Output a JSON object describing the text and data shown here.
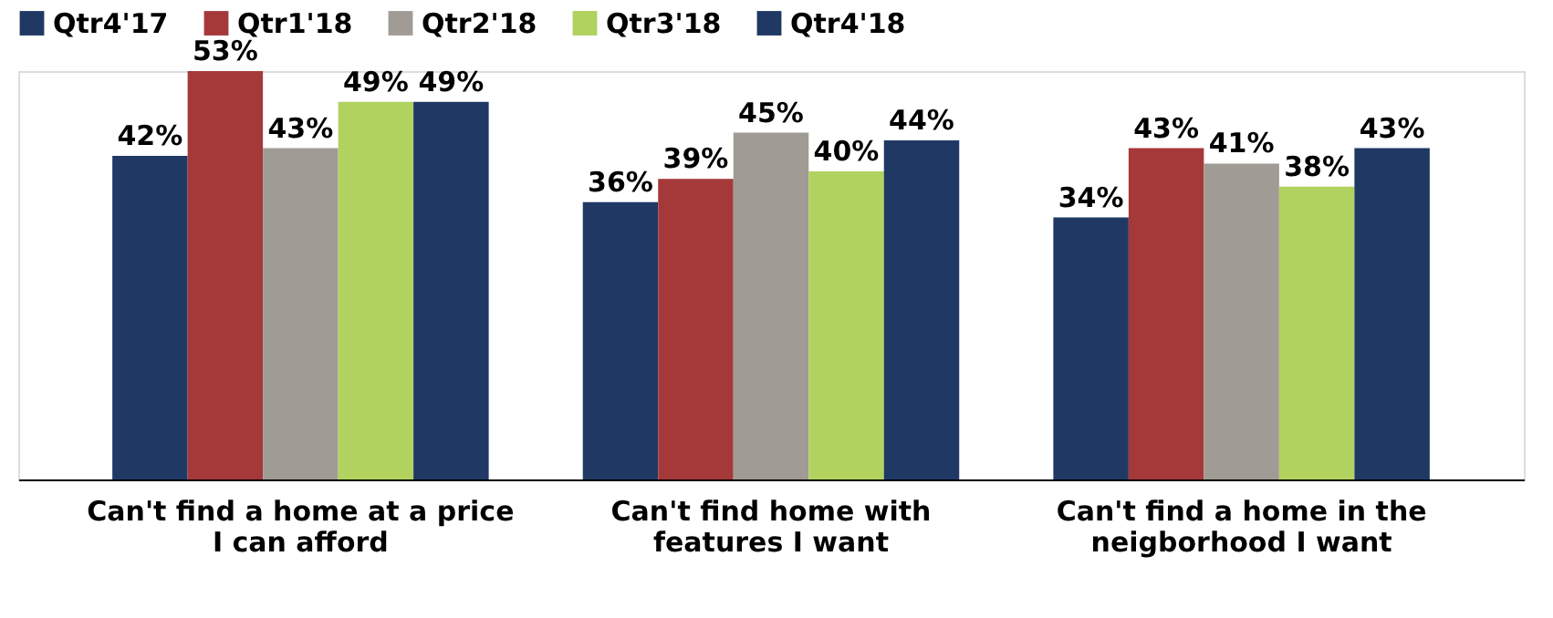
{
  "chart_data": {
    "type": "bar",
    "categories": [
      "Can't find a home at a price\nI can afford",
      "Can't find home with\nfeatures I want",
      "Can't find a home in the\nneigborhood I want"
    ],
    "series": [
      {
        "name": "Qtr4'17",
        "color": "#203864",
        "values": [
          42,
          36,
          34
        ],
        "value_labels": [
          "42%",
          "36%",
          "34%"
        ]
      },
      {
        "name": "Qtr1'18",
        "color": "#a5393a",
        "values": [
          53,
          39,
          43
        ],
        "value_labels": [
          "53%",
          "39%",
          "43%"
        ]
      },
      {
        "name": "Qtr2'18",
        "color": "#a09b94",
        "values": [
          43,
          45,
          41
        ],
        "value_labels": [
          "43%",
          "45%",
          "41%"
        ]
      },
      {
        "name": "Qtr3'18",
        "color": "#b1d25f",
        "values": [
          49,
          40,
          38
        ],
        "value_labels": [
          "49%",
          "40%",
          "38%"
        ]
      },
      {
        "name": "Qtr4'18",
        "color": "#203864",
        "values": [
          49,
          44,
          43
        ],
        "value_labels": [
          "49%",
          "44%",
          "43%"
        ]
      }
    ],
    "grid": false,
    "legend": "top",
    "tick_labels": "x"
  }
}
